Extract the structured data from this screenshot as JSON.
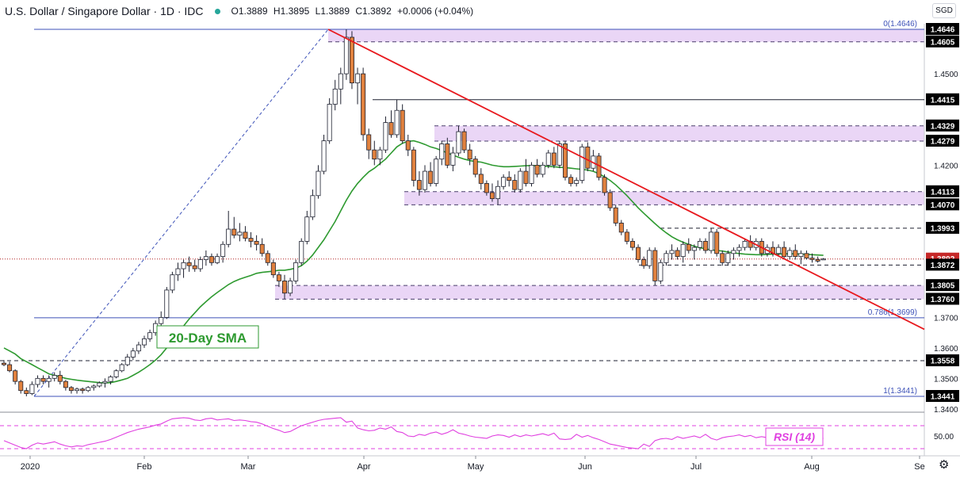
{
  "header": {
    "symbol": "U.S. Dollar / Singapore Dollar · 1D · IDC",
    "open": "O1.3889",
    "high": "H1.3895",
    "low": "L1.3889",
    "close": "C1.3892",
    "change": "+0.0006 (+0.04%)"
  },
  "currency_badge": "SGD",
  "icons": {
    "status": "status-dot-icon",
    "settings": "gear-icon"
  },
  "colors": {
    "up": "#ffffff",
    "down": "#e0813e",
    "trendline": "#e8191e",
    "sma": "#2e9a30",
    "rsi": "#e040e0",
    "zone": "#ead6f6",
    "fib": "#3d52b8"
  },
  "chart_data": [
    {
      "type": "candlestick",
      "title": "U.S. Dollar / Singapore Dollar · 1D · IDC",
      "ylim": [
        1.336,
        1.47
      ],
      "x_tick_labels": [
        "2020",
        "Feb",
        "Mar",
        "Apr",
        "May",
        "Jun",
        "Jul",
        "Aug",
        "Se"
      ],
      "y_tick_labels": [
        "1.3400",
        "1.3500",
        "1.3600",
        "1.3700",
        "1.4200",
        "1.4500"
      ],
      "price_labels": [
        "1.4646",
        "1.4605",
        "1.4415",
        "1.4329",
        "1.4279",
        "1.4113",
        "1.4070",
        "1.3993",
        "1.3892",
        "1.3872",
        "1.3805",
        "1.3760",
        "1.3558",
        "1.3441"
      ],
      "current_price": "1.3892",
      "zones": [
        {
          "low": 1.4605,
          "high": 1.4646
        },
        {
          "low": 1.4279,
          "high": 1.4329
        },
        {
          "low": 1.407,
          "high": 1.4113
        },
        {
          "low": 1.376,
          "high": 1.3805
        }
      ],
      "horizontal_levels": [
        {
          "value": 1.4415,
          "style": "solid"
        },
        {
          "value": 1.3993,
          "style": "dashed"
        },
        {
          "value": 1.3872,
          "style": "dashed"
        },
        {
          "value": 1.3558,
          "style": "dashed"
        }
      ],
      "fibonacci": [
        {
          "label": "0(1.4646)",
          "value": 1.4646
        },
        {
          "label": "0.786(1.3699)",
          "value": 1.3699
        },
        {
          "label": "1(1.3441)",
          "value": 1.3441
        }
      ],
      "annotations": [
        "20-Day SMA"
      ],
      "ohlc": [
        [
          1.355,
          1.356,
          1.354,
          1.3545
        ],
        [
          1.3545,
          1.3555,
          1.352,
          1.3525
        ],
        [
          1.3525,
          1.353,
          1.348,
          1.349
        ],
        [
          1.349,
          1.3495,
          1.345,
          1.346
        ],
        [
          1.346,
          1.347,
          1.3441,
          1.345
        ],
        [
          1.345,
          1.349,
          1.3445,
          1.348
        ],
        [
          1.348,
          1.351,
          1.347,
          1.35
        ],
        [
          1.35,
          1.351,
          1.348,
          1.349
        ],
        [
          1.349,
          1.351,
          1.347,
          1.35
        ],
        [
          1.35,
          1.352,
          1.349,
          1.351
        ],
        [
          1.351,
          1.3525,
          1.348,
          1.349
        ],
        [
          1.349,
          1.3495,
          1.346,
          1.347
        ],
        [
          1.347,
          1.3475,
          1.345,
          1.346
        ],
        [
          1.346,
          1.347,
          1.345,
          1.3465
        ],
        [
          1.3465,
          1.347,
          1.345,
          1.346
        ],
        [
          1.346,
          1.3475,
          1.3455,
          1.347
        ],
        [
          1.347,
          1.348,
          1.346,
          1.3475
        ],
        [
          1.3475,
          1.349,
          1.347,
          1.3485
        ],
        [
          1.3485,
          1.35,
          1.347,
          1.349
        ],
        [
          1.349,
          1.351,
          1.348,
          1.3505
        ],
        [
          1.3505,
          1.353,
          1.35,
          1.3525
        ],
        [
          1.3525,
          1.355,
          1.352,
          1.3545
        ],
        [
          1.3545,
          1.358,
          1.354,
          1.357
        ],
        [
          1.357,
          1.36,
          1.356,
          1.359
        ],
        [
          1.359,
          1.362,
          1.358,
          1.361
        ],
        [
          1.361,
          1.364,
          1.36,
          1.363
        ],
        [
          1.363,
          1.366,
          1.362,
          1.365
        ],
        [
          1.365,
          1.369,
          1.364,
          1.368
        ],
        [
          1.368,
          1.372,
          1.367,
          1.37
        ],
        [
          1.37,
          1.38,
          1.3695,
          1.379
        ],
        [
          1.379,
          1.385,
          1.378,
          1.384
        ],
        [
          1.384,
          1.388,
          1.382,
          1.386
        ],
        [
          1.386,
          1.389,
          1.383,
          1.388
        ],
        [
          1.388,
          1.39,
          1.385,
          1.387
        ],
        [
          1.387,
          1.389,
          1.385,
          1.386
        ],
        [
          1.386,
          1.39,
          1.385,
          1.389
        ],
        [
          1.389,
          1.392,
          1.387,
          1.39
        ],
        [
          1.39,
          1.391,
          1.387,
          1.388
        ],
        [
          1.388,
          1.391,
          1.3875,
          1.39
        ],
        [
          1.39,
          1.395,
          1.388,
          1.394
        ],
        [
          1.394,
          1.405,
          1.393,
          1.399
        ],
        [
          1.399,
          1.403,
          1.396,
          1.397
        ],
        [
          1.397,
          1.401,
          1.395,
          1.398
        ],
        [
          1.398,
          1.4,
          1.395,
          1.396
        ],
        [
          1.396,
          1.398,
          1.393,
          1.395
        ],
        [
          1.395,
          1.397,
          1.392,
          1.394
        ],
        [
          1.394,
          1.396,
          1.39,
          1.391
        ],
        [
          1.391,
          1.392,
          1.387,
          1.388
        ],
        [
          1.388,
          1.389,
          1.383,
          1.384
        ],
        [
          1.384,
          1.385,
          1.38,
          1.382
        ],
        [
          1.382,
          1.384,
          1.376,
          1.378
        ],
        [
          1.378,
          1.383,
          1.377,
          1.382
        ],
        [
          1.382,
          1.389,
          1.381,
          1.388
        ],
        [
          1.388,
          1.396,
          1.387,
          1.395
        ],
        [
          1.395,
          1.405,
          1.394,
          1.403
        ],
        [
          1.403,
          1.412,
          1.402,
          1.41
        ],
        [
          1.41,
          1.42,
          1.409,
          1.418
        ],
        [
          1.418,
          1.43,
          1.417,
          1.428
        ],
        [
          1.428,
          1.442,
          1.427,
          1.44
        ],
        [
          1.44,
          1.448,
          1.438,
          1.445
        ],
        [
          1.445,
          1.452,
          1.44,
          1.45
        ],
        [
          1.45,
          1.4646,
          1.448,
          1.462
        ],
        [
          1.462,
          1.464,
          1.445,
          1.447
        ],
        [
          1.447,
          1.452,
          1.44,
          1.45
        ],
        [
          1.45,
          1.452,
          1.428,
          1.43
        ],
        [
          1.43,
          1.432,
          1.422,
          1.425
        ],
        [
          1.425,
          1.428,
          1.42,
          1.422
        ],
        [
          1.422,
          1.426,
          1.42,
          1.425
        ],
        [
          1.425,
          1.436,
          1.424,
          1.434
        ],
        [
          1.434,
          1.438,
          1.429,
          1.43
        ],
        [
          1.43,
          1.4415,
          1.429,
          1.438
        ],
        [
          1.438,
          1.44,
          1.427,
          1.428
        ],
        [
          1.428,
          1.43,
          1.423,
          1.425
        ],
        [
          1.425,
          1.426,
          1.413,
          1.415
        ],
        [
          1.415,
          1.418,
          1.41,
          1.412
        ],
        [
          1.412,
          1.42,
          1.411,
          1.418
        ],
        [
          1.418,
          1.421,
          1.413,
          1.414
        ],
        [
          1.414,
          1.423,
          1.413,
          1.422
        ],
        [
          1.422,
          1.428,
          1.42,
          1.427
        ],
        [
          1.427,
          1.429,
          1.419,
          1.42
        ],
        [
          1.42,
          1.426,
          1.418,
          1.424
        ],
        [
          1.424,
          1.4329,
          1.423,
          1.431
        ],
        [
          1.431,
          1.432,
          1.424,
          1.425
        ],
        [
          1.425,
          1.427,
          1.42,
          1.422
        ],
        [
          1.422,
          1.423,
          1.416,
          1.417
        ],
        [
          1.417,
          1.419,
          1.412,
          1.414
        ],
        [
          1.414,
          1.415,
          1.41,
          1.411
        ],
        [
          1.411,
          1.414,
          1.408,
          1.409
        ],
        [
          1.409,
          1.415,
          1.407,
          1.413
        ],
        [
          1.413,
          1.417,
          1.412,
          1.416
        ],
        [
          1.416,
          1.418,
          1.413,
          1.415
        ],
        [
          1.415,
          1.417,
          1.411,
          1.412
        ],
        [
          1.412,
          1.419,
          1.411,
          1.418
        ],
        [
          1.418,
          1.422,
          1.413,
          1.414
        ],
        [
          1.414,
          1.421,
          1.413,
          1.42
        ],
        [
          1.42,
          1.422,
          1.416,
          1.417
        ],
        [
          1.417,
          1.421,
          1.416,
          1.42
        ],
        [
          1.42,
          1.425,
          1.419,
          1.424
        ],
        [
          1.424,
          1.426,
          1.419,
          1.42
        ],
        [
          1.42,
          1.4279,
          1.419,
          1.427
        ],
        [
          1.427,
          1.428,
          1.415,
          1.416
        ],
        [
          1.416,
          1.417,
          1.413,
          1.414
        ],
        [
          1.414,
          1.416,
          1.413,
          1.415
        ],
        [
          1.415,
          1.427,
          1.414,
          1.426
        ],
        [
          1.426,
          1.4275,
          1.418,
          1.419
        ],
        [
          1.419,
          1.425,
          1.418,
          1.423
        ],
        [
          1.423,
          1.424,
          1.415,
          1.416
        ],
        [
          1.416,
          1.417,
          1.41,
          1.411
        ],
        [
          1.411,
          1.412,
          1.405,
          1.406
        ],
        [
          1.406,
          1.407,
          1.4,
          1.401
        ],
        [
          1.401,
          1.402,
          1.397,
          1.398
        ],
        [
          1.398,
          1.399,
          1.394,
          1.395
        ],
        [
          1.395,
          1.396,
          1.392,
          1.393
        ],
        [
          1.393,
          1.394,
          1.388,
          1.389
        ],
        [
          1.389,
          1.39,
          1.386,
          1.387
        ],
        [
          1.387,
          1.393,
          1.386,
          1.392
        ],
        [
          1.392,
          1.393,
          1.3805,
          1.382
        ],
        [
          1.382,
          1.389,
          1.381,
          1.388
        ],
        [
          1.388,
          1.392,
          1.387,
          1.391
        ],
        [
          1.391,
          1.394,
          1.389,
          1.392
        ],
        [
          1.392,
          1.393,
          1.389,
          1.39
        ],
        [
          1.39,
          1.395,
          1.388,
          1.394
        ],
        [
          1.394,
          1.396,
          1.391,
          1.392
        ],
        [
          1.392,
          1.394,
          1.389,
          1.393
        ],
        [
          1.393,
          1.396,
          1.392,
          1.395
        ],
        [
          1.395,
          1.396,
          1.391,
          1.392
        ],
        [
          1.392,
          1.3993,
          1.391,
          1.398
        ],
        [
          1.398,
          1.399,
          1.39,
          1.391
        ],
        [
          1.391,
          1.392,
          1.387,
          1.388
        ],
        [
          1.388,
          1.392,
          1.387,
          1.391
        ],
        [
          1.391,
          1.393,
          1.389,
          1.392
        ],
        [
          1.392,
          1.394,
          1.39,
          1.393
        ],
        [
          1.393,
          1.396,
          1.392,
          1.395
        ],
        [
          1.395,
          1.397,
          1.392,
          1.393
        ],
        [
          1.393,
          1.396,
          1.392,
          1.395
        ],
        [
          1.395,
          1.396,
          1.39,
          1.391
        ],
        [
          1.391,
          1.394,
          1.39,
          1.393
        ],
        [
          1.393,
          1.395,
          1.39,
          1.391
        ],
        [
          1.391,
          1.394,
          1.39,
          1.393
        ],
        [
          1.393,
          1.395,
          1.389,
          1.39
        ],
        [
          1.39,
          1.393,
          1.389,
          1.392
        ],
        [
          1.392,
          1.394,
          1.389,
          1.39
        ],
        [
          1.39,
          1.392,
          1.3875,
          1.391
        ],
        [
          1.391,
          1.392,
          1.389,
          1.3895
        ],
        [
          1.3895,
          1.391,
          1.388,
          1.389
        ],
        [
          1.389,
          1.39,
          1.388,
          1.3885
        ],
        [
          1.3889,
          1.3895,
          1.3889,
          1.3892
        ]
      ],
      "sma_20": [
        1.36,
        1.359,
        1.358,
        1.3565,
        1.3555,
        1.3545,
        1.3535,
        1.3525,
        1.3515,
        1.351,
        1.3505,
        1.35,
        1.3497,
        1.3494,
        1.3492,
        1.349,
        1.3488,
        1.3486,
        1.3485,
        1.3486,
        1.349,
        1.3495,
        1.35,
        1.351,
        1.352,
        1.3532,
        1.3545,
        1.356,
        1.3578,
        1.36,
        1.3625,
        1.365,
        1.3672,
        1.3695,
        1.3715,
        1.3735,
        1.3752,
        1.3768,
        1.3782,
        1.3795,
        1.3808,
        1.3818,
        1.3826,
        1.3832,
        1.3838,
        1.3845,
        1.3848,
        1.385,
        1.3852,
        1.3855,
        1.3855,
        1.3858,
        1.3862,
        1.387,
        1.3885,
        1.3905,
        1.393,
        1.3955,
        1.3985,
        1.4015,
        1.405,
        1.4085,
        1.4115,
        1.414,
        1.416,
        1.4178,
        1.419,
        1.4205,
        1.422,
        1.424,
        1.426,
        1.4272,
        1.4278,
        1.428,
        1.4275,
        1.4268,
        1.426,
        1.4255,
        1.4248,
        1.424,
        1.4233,
        1.4226,
        1.422,
        1.4215,
        1.4212,
        1.421,
        1.4205,
        1.42,
        1.4197,
        1.4195,
        1.4195,
        1.4196,
        1.4197,
        1.4198,
        1.4199,
        1.4198,
        1.4197,
        1.4196,
        1.4195,
        1.4193,
        1.4192,
        1.419,
        1.4188,
        1.4186,
        1.4184,
        1.418,
        1.4172,
        1.4162,
        1.415,
        1.4135,
        1.4118,
        1.41,
        1.408,
        1.406,
        1.4042,
        1.4025,
        1.4008,
        1.3992,
        1.3978,
        1.3965,
        1.3955,
        1.3947,
        1.394,
        1.3934,
        1.3929,
        1.3925,
        1.3922,
        1.392,
        1.3918,
        1.3915,
        1.3912,
        1.391,
        1.3908,
        1.3907,
        1.3906,
        1.3906,
        1.3907,
        1.3908,
        1.3908,
        1.3909,
        1.3909,
        1.3909,
        1.3908,
        1.3907,
        1.3906,
        1.3905,
        1.3904
      ]
    },
    {
      "type": "line",
      "title": "RSI (14)",
      "y_tick_labels": [
        "50.00"
      ],
      "ylim": [
        0,
        100
      ],
      "values": [
        44,
        40,
        36,
        32,
        30,
        36,
        40,
        38,
        40,
        42,
        38,
        35,
        33,
        35,
        34,
        37,
        39,
        41,
        43,
        46,
        50,
        54,
        58,
        61,
        64,
        66,
        68,
        71,
        73,
        78,
        82,
        83,
        84,
        83,
        80,
        79,
        82,
        83,
        80,
        81,
        82,
        79,
        80,
        79,
        77,
        76,
        73,
        69,
        65,
        62,
        58,
        60,
        65,
        70,
        73,
        76,
        79,
        81,
        82,
        83,
        84,
        76,
        78,
        66,
        63,
        61,
        62,
        66,
        64,
        68,
        60,
        58,
        52,
        51,
        55,
        53,
        57,
        59,
        55,
        58,
        63,
        57,
        55,
        52,
        50,
        49,
        48,
        52,
        54,
        53,
        50,
        54,
        51,
        54,
        52,
        54,
        56,
        53,
        57,
        47,
        46,
        47,
        55,
        50,
        53,
        49,
        46,
        42,
        38,
        36,
        34,
        32,
        31,
        30,
        38,
        34,
        44,
        47,
        48,
        46,
        51,
        48,
        50,
        52,
        49,
        55,
        48,
        45,
        49,
        51,
        52,
        54,
        51,
        53,
        49,
        51,
        49,
        51,
        48,
        50,
        48,
        49,
        50,
        48,
        47,
        48,
        48
      ]
    }
  ]
}
